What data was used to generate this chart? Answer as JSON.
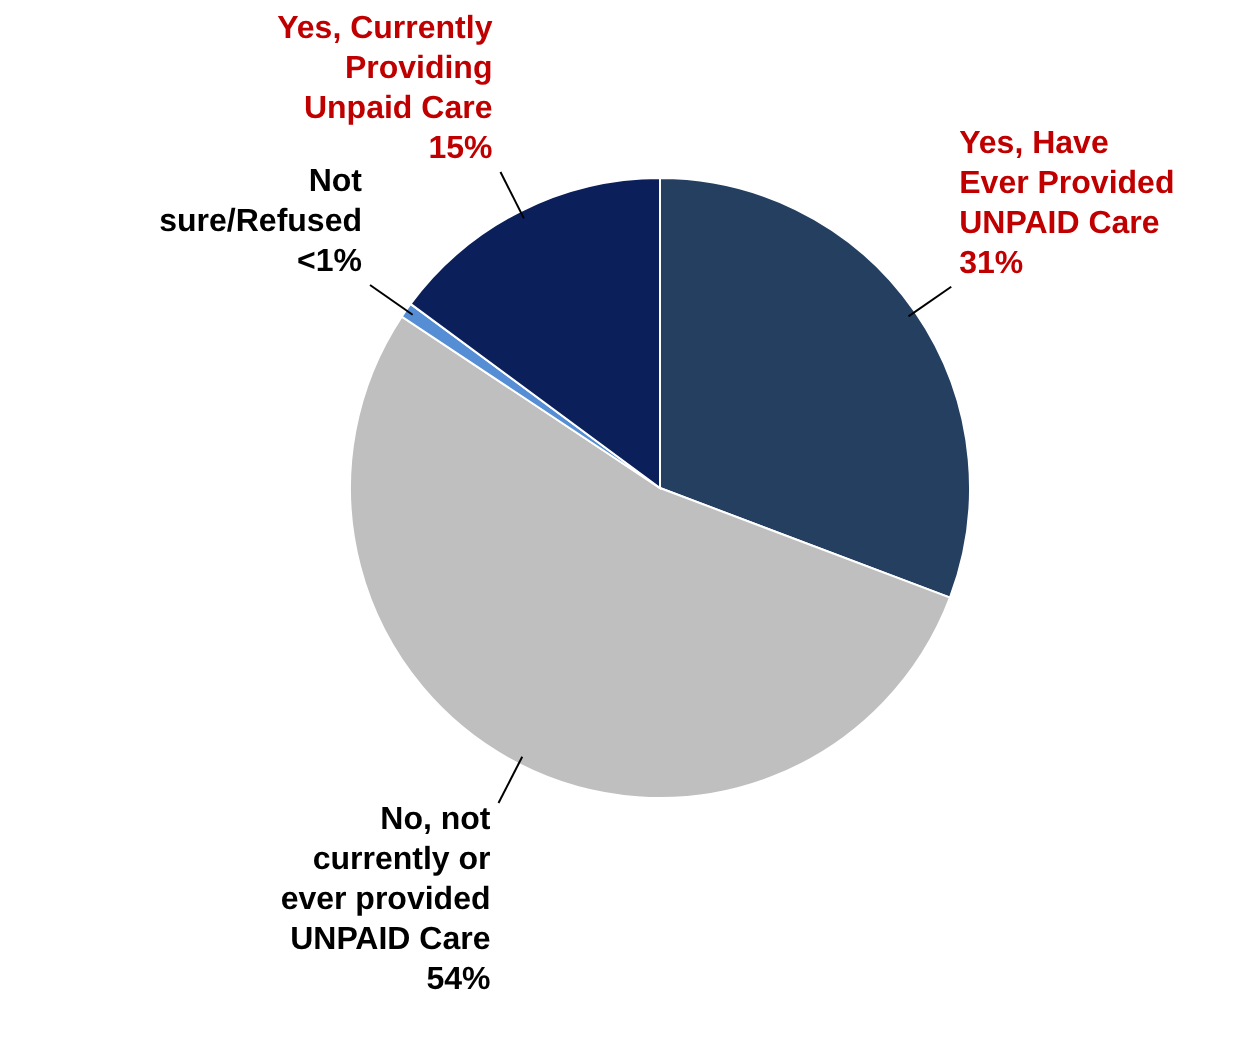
{
  "chart_data": {
    "type": "pie",
    "categories": [
      "Yes, Have Ever Provided UNPAID Care",
      "No, not currently or ever provided UNPAID Care",
      "Not sure/Refused",
      "Yes, Currently Providing Unpaid Care"
    ],
    "values": [
      31,
      54,
      0.8,
      15
    ],
    "value_labels": [
      "31%",
      "54%",
      "<1%",
      "15%"
    ],
    "colors": [
      "#243f60",
      "#bfbfbf",
      "#558ed5",
      "#0b1f5b"
    ]
  }
}
